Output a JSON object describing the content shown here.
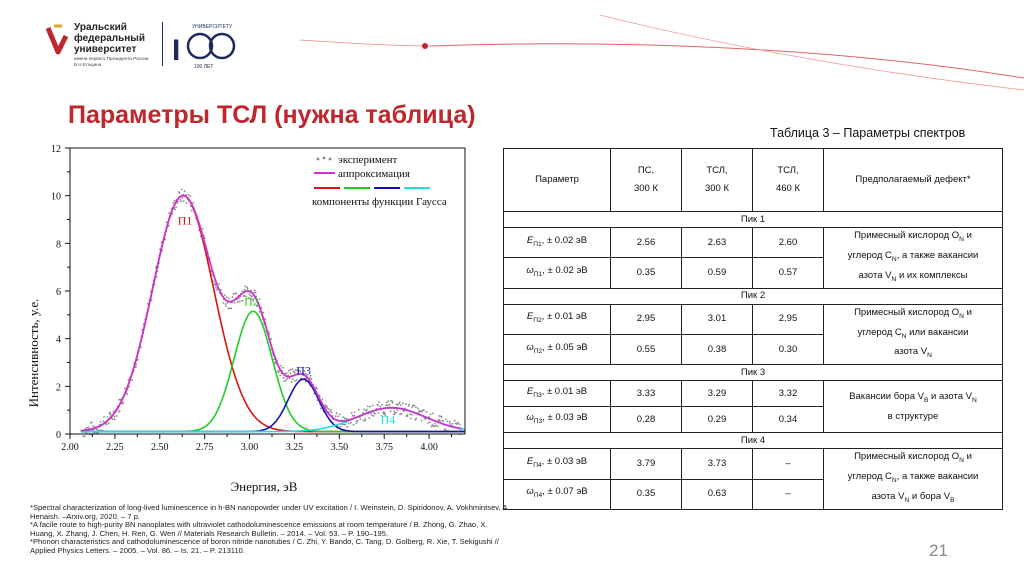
{
  "header": {
    "university_lines": [
      "Уральский",
      "федеральный",
      "университет"
    ],
    "university_subtitle": "имени первого Президента России Б.Н.Ельцина",
    "anniversary_arc_text": "УНИВЕРСИТЕТУ",
    "anniversary_arc_text_bottom": "100 ЛЕТ"
  },
  "slide": {
    "title": "Параметры ТСЛ (нужна таблица)",
    "page_number": "21"
  },
  "colors": {
    "brand_red": "#c0262d",
    "navy": "#1e2a5a",
    "experiment": "#888888",
    "fit": "#cc33cc",
    "p1": "#dd1111",
    "p2": "#22cc22",
    "p3": "#1111bb",
    "p4": "#22dddd"
  },
  "chart_data": {
    "type": "line",
    "xlabel": "Энергия, эВ",
    "ylabel": "Интенсивность, у.е.",
    "xlim": [
      2.0,
      4.2
    ],
    "ylim": [
      0,
      12
    ],
    "xticks": [
      "2.00",
      "2.25",
      "2.50",
      "2.75",
      "3.00",
      "3.25",
      "3.50",
      "3.75",
      "4.00"
    ],
    "yticks": [
      "0",
      "2",
      "4",
      "6",
      "8",
      "10",
      "12"
    ],
    "grid": false,
    "legend_position": "top-right",
    "legend": {
      "experiment": "эксперимент",
      "fit": "аппроксимация",
      "components": "компоненты функции Гаусса"
    },
    "series": [
      {
        "name": "П1",
        "label_at": [
          2.6,
          8.8
        ],
        "center": 2.63,
        "amplitude": 9.9,
        "fwhm": 0.4
      },
      {
        "name": "П2",
        "label_at": [
          2.97,
          5.4
        ],
        "center": 3.02,
        "amplitude": 5.05,
        "fwhm": 0.25
      },
      {
        "name": "П3",
        "label_at": [
          3.26,
          2.5
        ],
        "center": 3.3,
        "amplitude": 2.2,
        "fwhm": 0.2
      },
      {
        "name": "П4",
        "label_at": [
          3.73,
          0.45
        ],
        "center": 3.79,
        "amplitude": 1.0,
        "fwhm": 0.45
      }
    ],
    "baseline": 0.1,
    "experiment_range": [
      2.07,
      4.18
    ]
  },
  "table": {
    "caption": "Таблица 3 – Параметры спектров",
    "headers": [
      "Параметр",
      "ПС,",
      "300 К",
      "ТСЛ,",
      "300 К",
      "ТСЛ,",
      "460 К",
      "Предполагаемый дефект*"
    ],
    "peaks": [
      {
        "title": "Пик 1",
        "rows": [
          {
            "sym": "E",
            "sub": "П1",
            "tol": ", ± 0.02 эВ",
            "v": [
              "2.56",
              "2.63",
              "2.60"
            ]
          },
          {
            "sym": "ω",
            "sub": "П1",
            "tol": ", ± 0.02 эВ",
            "v": [
              "0.35",
              "0.59",
              "0.57"
            ]
          }
        ],
        "defect": [
          [
            [
              "Примесный кислород O"
            ],
            [
              "N",
              "sub"
            ],
            [
              " и"
            ]
          ],
          [
            [
              "углерод C"
            ],
            [
              "N",
              "sub"
            ],
            [
              ", а также вакансии"
            ]
          ],
          [
            [
              "азота V"
            ],
            [
              "N",
              "sub"
            ],
            [
              " и их комплексы"
            ]
          ]
        ]
      },
      {
        "title": "Пик 2",
        "rows": [
          {
            "sym": "E",
            "sub": "П2",
            "tol": ", ± 0.01 эВ",
            "v": [
              "2.95",
              "3.01",
              "2.95"
            ]
          },
          {
            "sym": "ω",
            "sub": "П2",
            "tol": ", ± 0.05 эВ",
            "v": [
              "0.55",
              "0.38",
              "0.30"
            ]
          }
        ],
        "defect": [
          [
            [
              "Примесный кислород O"
            ],
            [
              "N",
              "sub"
            ],
            [
              " и"
            ]
          ],
          [
            [
              "углерод C"
            ],
            [
              "N",
              "sub"
            ],
            [
              " или вакансии"
            ]
          ],
          [
            [
              "азота V"
            ],
            [
              "N",
              "sub"
            ]
          ]
        ]
      },
      {
        "title": "Пик 3",
        "rows": [
          {
            "sym": "E",
            "sub": "П3",
            "tol": ", ± 0.01 эВ",
            "v": [
              "3.33",
              "3.29",
              "3.32"
            ]
          },
          {
            "sym": "ω",
            "sub": "П3",
            "tol": ", ± 0.03 эВ",
            "v": [
              "0.28",
              "0.29",
              "0.34"
            ]
          }
        ],
        "defect": [
          [
            [
              "Вакансии бора V"
            ],
            [
              "B",
              "sub"
            ],
            [
              " и азота V"
            ],
            [
              "N",
              "sub"
            ]
          ],
          [
            [
              "в структуре"
            ]
          ]
        ]
      },
      {
        "title": "Пик 4",
        "rows": [
          {
            "sym": "E",
            "sub": "П4",
            "tol": ", ± 0.03 эВ",
            "v": [
              "3.79",
              "3.73",
              "–"
            ]
          },
          {
            "sym": "ω",
            "sub": "П4",
            "tol": ", ± 0.07 эВ",
            "v": [
              "0.35",
              "0.63",
              "–"
            ]
          }
        ],
        "defect": [
          [
            [
              "Примесный кислород O"
            ],
            [
              "N",
              "sub"
            ],
            [
              " и"
            ]
          ],
          [
            [
              "углерод C"
            ],
            [
              "N",
              "sub"
            ],
            [
              ", а также вакансии"
            ]
          ],
          [
            [
              "азота V"
            ],
            [
              "N",
              "sub"
            ],
            [
              " и бора V"
            ],
            [
              "B",
              "sub"
            ]
          ]
        ]
      }
    ]
  },
  "footnotes": [
    "*Spectral characterization of long-lived luminescence in h-BN nanopowder under UV excitation / I. Weinstein, D. Spiridonov, A. Vokhmintsev, A. Henaish. –Arxiv.org, 2020. – 7 p.",
    "*A facile route to high-purity BN nanoplates with ultraviolet cathodoluminescence emissions at room temperature / B. Zhong, G. Zhao, X. Huang, X. Zhang, J. Chen, H. Ren, G. Wen // Materials Research Bulletin. – 2014. – Vol. 53. – P. 190–195.",
    "*Phonon characteristics and cathodoluminescence of boron nitride nanotubes / C. Zhi, Y. Bando, C. Tang, D. Golberg, R. Xie, T. Sekigushi // Applied Physics Letters. – 2005. – Vol. 86. – Is. 21. – P. 213110."
  ]
}
